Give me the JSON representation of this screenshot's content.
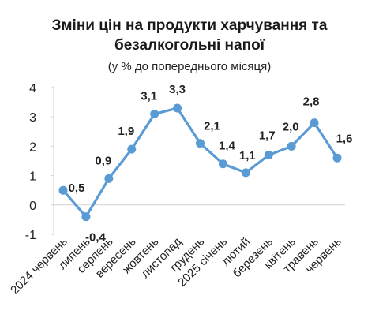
{
  "chart_data": {
    "type": "line",
    "title_line1": "Зміни цін на продукти харчування та",
    "title_line2": "безалкогольні напої",
    "subtitle": "(у % до попереднього місяця)",
    "categories": [
      "2024 червень",
      "липень",
      "серпень",
      "вересень",
      "жовтень",
      "листопад",
      "грудень",
      "2025 січень",
      "лютий",
      "березень",
      "квітень",
      "травень",
      "червень"
    ],
    "series": [
      {
        "values": [
          0.5,
          -0.4,
          0.9,
          1.9,
          3.1,
          3.3,
          2.1,
          1.4,
          1.1,
          1.7,
          2.0,
          2.8,
          1.6
        ],
        "labels": [
          "0,5",
          "-0,4",
          "0,9",
          "1,9",
          "3,1",
          "3,3",
          "2,1",
          "1,4",
          "1,1",
          "1,7",
          "2,0",
          "2,8",
          "1,6"
        ]
      }
    ],
    "yticks": [
      4,
      3,
      2,
      1,
      0,
      -1
    ],
    "ytick_labels": [
      "4",
      "3",
      "2",
      "1",
      "0",
      "-1"
    ],
    "ylim": [
      -1,
      4
    ],
    "grid": false,
    "legend": "none",
    "colors": {
      "line": "#5b9bd5",
      "marker": "#5b9bd5",
      "axis": "#d0d0d0",
      "text": "#222222",
      "title": "#1a1a1a"
    }
  }
}
